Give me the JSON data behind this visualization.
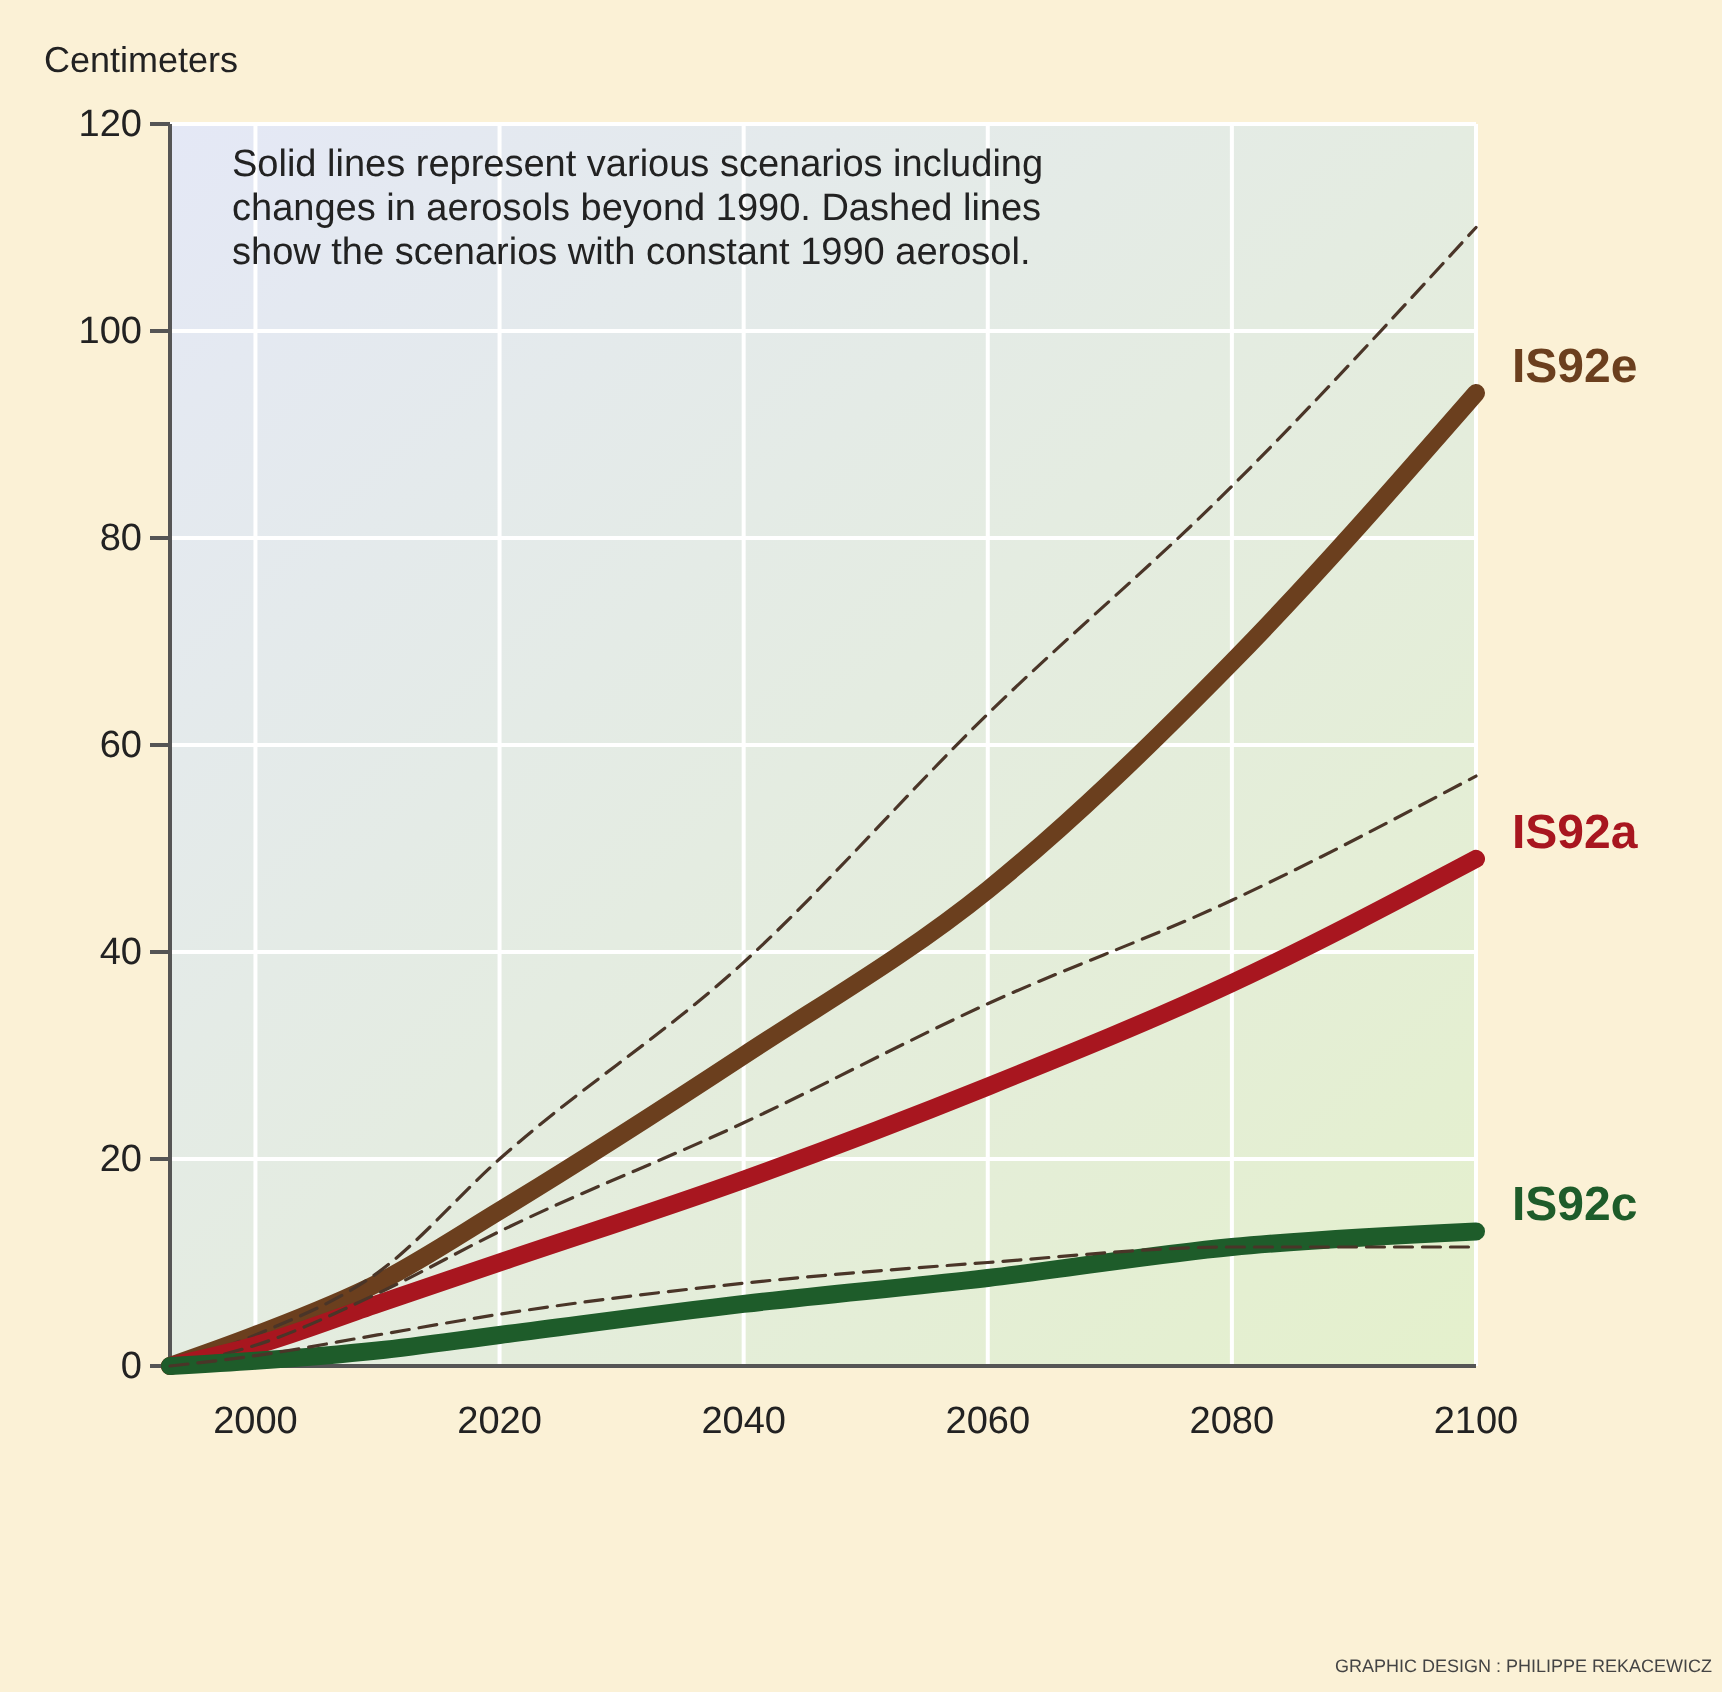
{
  "chart_data": {
    "type": "line",
    "ylabel": "Centimeters",
    "x": [
      1993,
      2000,
      2010,
      2020,
      2040,
      2060,
      2080,
      2100
    ],
    "xlim": [
      1993,
      2100
    ],
    "xticks": [
      2000,
      2020,
      2040,
      2060,
      2080,
      2100
    ],
    "ylim": [
      0,
      120
    ],
    "yticks": [
      0,
      20,
      40,
      60,
      80,
      100,
      120
    ],
    "grid": true,
    "marker": "none",
    "series": [
      {
        "name": "IS92e",
        "color": "#6b3f1e",
        "line_style": "solid",
        "values": [
          0,
          3,
          8,
          15,
          30,
          46,
          68,
          94
        ]
      },
      {
        "color": "#4a3528",
        "line_style": "dashed",
        "values": [
          0,
          3,
          9,
          20,
          39,
          63,
          85,
          110
        ]
      },
      {
        "name": "IS92a",
        "color": "#a8161f",
        "line_style": "solid",
        "values": [
          0,
          2,
          6,
          10,
          18,
          27,
          37,
          49
        ]
      },
      {
        "color": "#4a3528",
        "line_style": "dashed",
        "values": [
          0,
          2,
          7,
          13,
          23.5,
          35,
          45,
          57
        ]
      },
      {
        "name": "IS92c",
        "color": "#1e5c2a",
        "line_style": "solid",
        "values": [
          0,
          0.5,
          1.5,
          3,
          6,
          8.5,
          11.5,
          13
        ]
      },
      {
        "color": "#4a3528",
        "line_style": "dashed",
        "values": [
          0,
          1,
          3,
          5,
          8,
          10,
          11.5,
          11.5
        ]
      }
    ],
    "annotations": [
      "Solid lines represent various scenarios including changes in aerosols beyond 1990. Dashed lines show the scenarios with constant 1990 aerosol.",
      "GRAPHIC DESIGN : PHILIPPE REKACEWICZ"
    ]
  }
}
